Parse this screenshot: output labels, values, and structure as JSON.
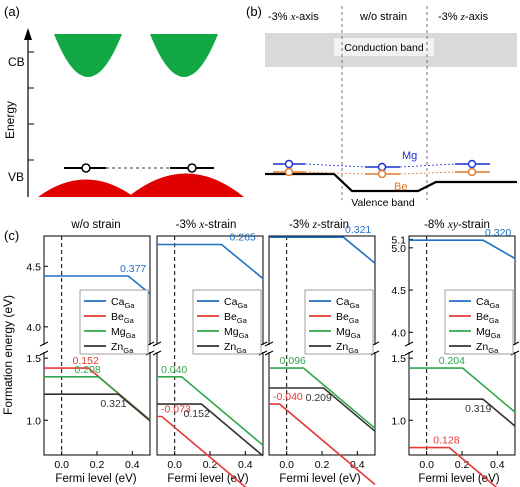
{
  "panel_a": {
    "label": "(a)",
    "axis_label": "Energy",
    "cb_label": "CB",
    "vb_label": "VB",
    "colors": {
      "cb": "#11a845",
      "vb": "#e00000"
    }
  },
  "panel_b": {
    "label": "(b)",
    "headers": [
      {
        "prefix": "-3% ",
        "axis": "x",
        "suffix": "-axis"
      },
      {
        "prefix": "w/o strain",
        "axis": "",
        "suffix": ""
      },
      {
        "prefix": "-3% ",
        "axis": "z",
        "suffix": "-axis"
      }
    ],
    "conduction_band": "Conduction band",
    "valence_band": "Valence band",
    "dopants": [
      {
        "name": "Mg",
        "color": "#1a2fd6"
      },
      {
        "name": "Be",
        "color": "#e07a2a"
      }
    ]
  },
  "panel_c": {
    "label": "(c)",
    "ylabel": "Formation energy (eV)",
    "xlabel": "Fermi level (eV)",
    "colors": {
      "Ca": "#1f6fc4",
      "Be": "#e53935",
      "Mg": "#2ea84a",
      "Zn": "#333333"
    },
    "legend": [
      "Ca",
      "Be",
      "Mg",
      "Zn"
    ],
    "legend_sub": "Ga"
  },
  "chart_data": [
    {
      "type": "line",
      "title": "w/o strain",
      "xlabel": "Fermi level (eV)",
      "ylabel": "Formation energy (eV)",
      "x_ticks": [
        "0.0",
        "0.2",
        "0.4"
      ],
      "y_ticks_upper": [
        "4.5",
        "4.0"
      ],
      "y_ticks_lower": [
        "1.0",
        "1.5"
      ],
      "series": [
        {
          "name": "CaGa",
          "flat": 4.42,
          "kink": 0.377,
          "label": "0.377"
        },
        {
          "name": "BeGa",
          "flat": 1.42,
          "kink": 0.152,
          "label": "0.152"
        },
        {
          "name": "MgGa",
          "flat": 1.35,
          "kink": 0.208,
          "label": "0.208"
        },
        {
          "name": "ZnGa",
          "flat": 1.21,
          "kink": 0.321,
          "label": "0.321"
        }
      ]
    },
    {
      "type": "line",
      "title_prefix": "-3% ",
      "title_axis": "x",
      "title_suffix": "-strain",
      "xlabel": "Fermi level (eV)",
      "x_ticks": [
        "0.0",
        "0.2",
        "0.4"
      ],
      "series": [
        {
          "name": "CaGa",
          "flat": 4.68,
          "kink": 0.265,
          "label": "0.265"
        },
        {
          "name": "BeGa",
          "flat": 1.03,
          "kink": -0.073,
          "label": "-0.073"
        },
        {
          "name": "MgGa",
          "flat": 1.35,
          "kink": 0.04,
          "label": "0.040"
        },
        {
          "name": "ZnGa",
          "flat": 1.13,
          "kink": 0.152,
          "label": "0.152"
        }
      ]
    },
    {
      "type": "line",
      "title_prefix": "-3% ",
      "title_axis": "z",
      "title_suffix": "-strain",
      "xlabel": "Fermi level (eV)",
      "x_ticks": [
        "0.0",
        "0.2",
        "0.4"
      ],
      "series": [
        {
          "name": "CaGa",
          "flat": 4.74,
          "kink": 0.321,
          "label": "0.321"
        },
        {
          "name": "BeGa",
          "flat": 1.13,
          "kink": -0.04,
          "label": "-0.040"
        },
        {
          "name": "MgGa",
          "flat": 1.42,
          "kink": 0.096,
          "label": "0.096"
        },
        {
          "name": "ZnGa",
          "flat": 1.26,
          "kink": 0.209,
          "label": "0.209"
        }
      ]
    },
    {
      "type": "line",
      "title_prefix": "-8% ",
      "title_axis": "xy",
      "title_suffix": "-strain",
      "xlabel": "Fermi level (eV)",
      "x_ticks": [
        "0.0",
        "0.2",
        "0.4"
      ],
      "y_ticks_upper": [
        "5.1",
        "5.0",
        "4.5",
        "4.0"
      ],
      "y_ticks_lower": [
        "1.0",
        "1.5"
      ],
      "series": [
        {
          "name": "CaGa",
          "flat": 5.09,
          "kink": 0.32,
          "label": "0.320"
        },
        {
          "name": "BeGa",
          "flat": 0.78,
          "kink": 0.128,
          "label": "0.128"
        },
        {
          "name": "MgGa",
          "flat": 1.42,
          "kink": 0.204,
          "label": "0.204"
        },
        {
          "name": "ZnGa",
          "flat": 1.17,
          "kink": 0.319,
          "label": "0.319"
        }
      ]
    }
  ]
}
